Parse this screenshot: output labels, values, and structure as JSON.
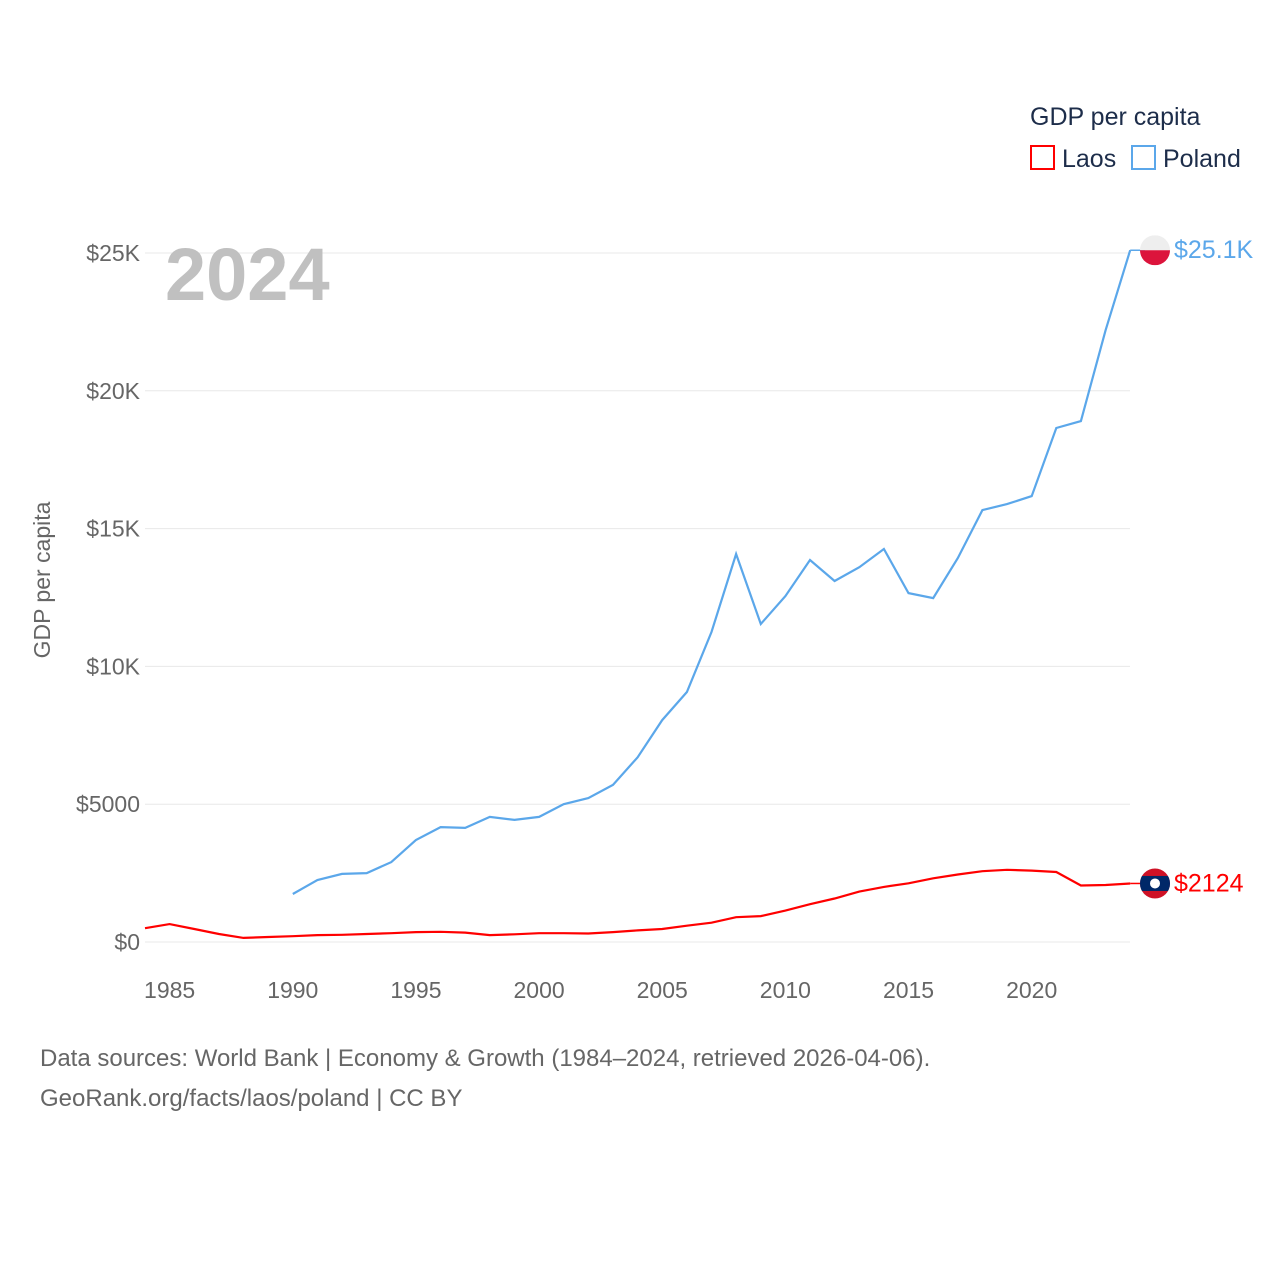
{
  "chart_data": {
    "type": "line",
    "title": "GDP per capita",
    "year_label": "2024",
    "ylabel": "GDP per capita",
    "xlabel": "",
    "ylim": [
      0,
      25000
    ],
    "xlim": [
      1984,
      2024
    ],
    "grid": true,
    "legend_position": "top-right",
    "x_ticks": [
      1985,
      1990,
      1995,
      2000,
      2005,
      2010,
      2015,
      2020
    ],
    "x_tick_labels": [
      "1985",
      "1990",
      "1995",
      "2000",
      "2005",
      "2010",
      "2015",
      "2020"
    ],
    "y_ticks": [
      0,
      5000,
      10000,
      15000,
      20000,
      25000
    ],
    "y_tick_labels": [
      "$0",
      "$5000",
      "$10K",
      "$15K",
      "$20K",
      "$25K"
    ],
    "series": [
      {
        "name": "Laos",
        "color": "#ff0000",
        "end_label": "$2124",
        "start_year": 1984,
        "values": [
          500,
          650,
          470,
          290,
          150,
          180,
          210,
          250,
          260,
          290,
          320,
          360,
          370,
          340,
          250,
          280,
          320,
          320,
          310,
          360,
          420,
          470,
          590,
          700,
          900,
          940,
          1140,
          1370,
          1580,
          1830,
          2000,
          2130,
          2310,
          2450,
          2570,
          2620,
          2590,
          2540,
          2050,
          2070,
          2124
        ]
      },
      {
        "name": "Poland",
        "color": "#5ba7ea",
        "end_label": "$25.1K",
        "start_year": 1990,
        "values": [
          1740,
          2250,
          2470,
          2500,
          2900,
          3700,
          4170,
          4140,
          4540,
          4430,
          4540,
          5000,
          5220,
          5700,
          6700,
          8050,
          9070,
          11250,
          14080,
          11540,
          12550,
          13860,
          13100,
          13600,
          14260,
          12660,
          12480,
          13930,
          15670,
          15890,
          16180,
          18650,
          18900,
          22200,
          25100
        ]
      }
    ]
  },
  "sources": {
    "line1": "Data sources: World Bank | Economy & Growth (1984–2024, retrieved 2026-04-06).",
    "line2": "GeoRank.org/facts/laos/poland | CC BY"
  }
}
